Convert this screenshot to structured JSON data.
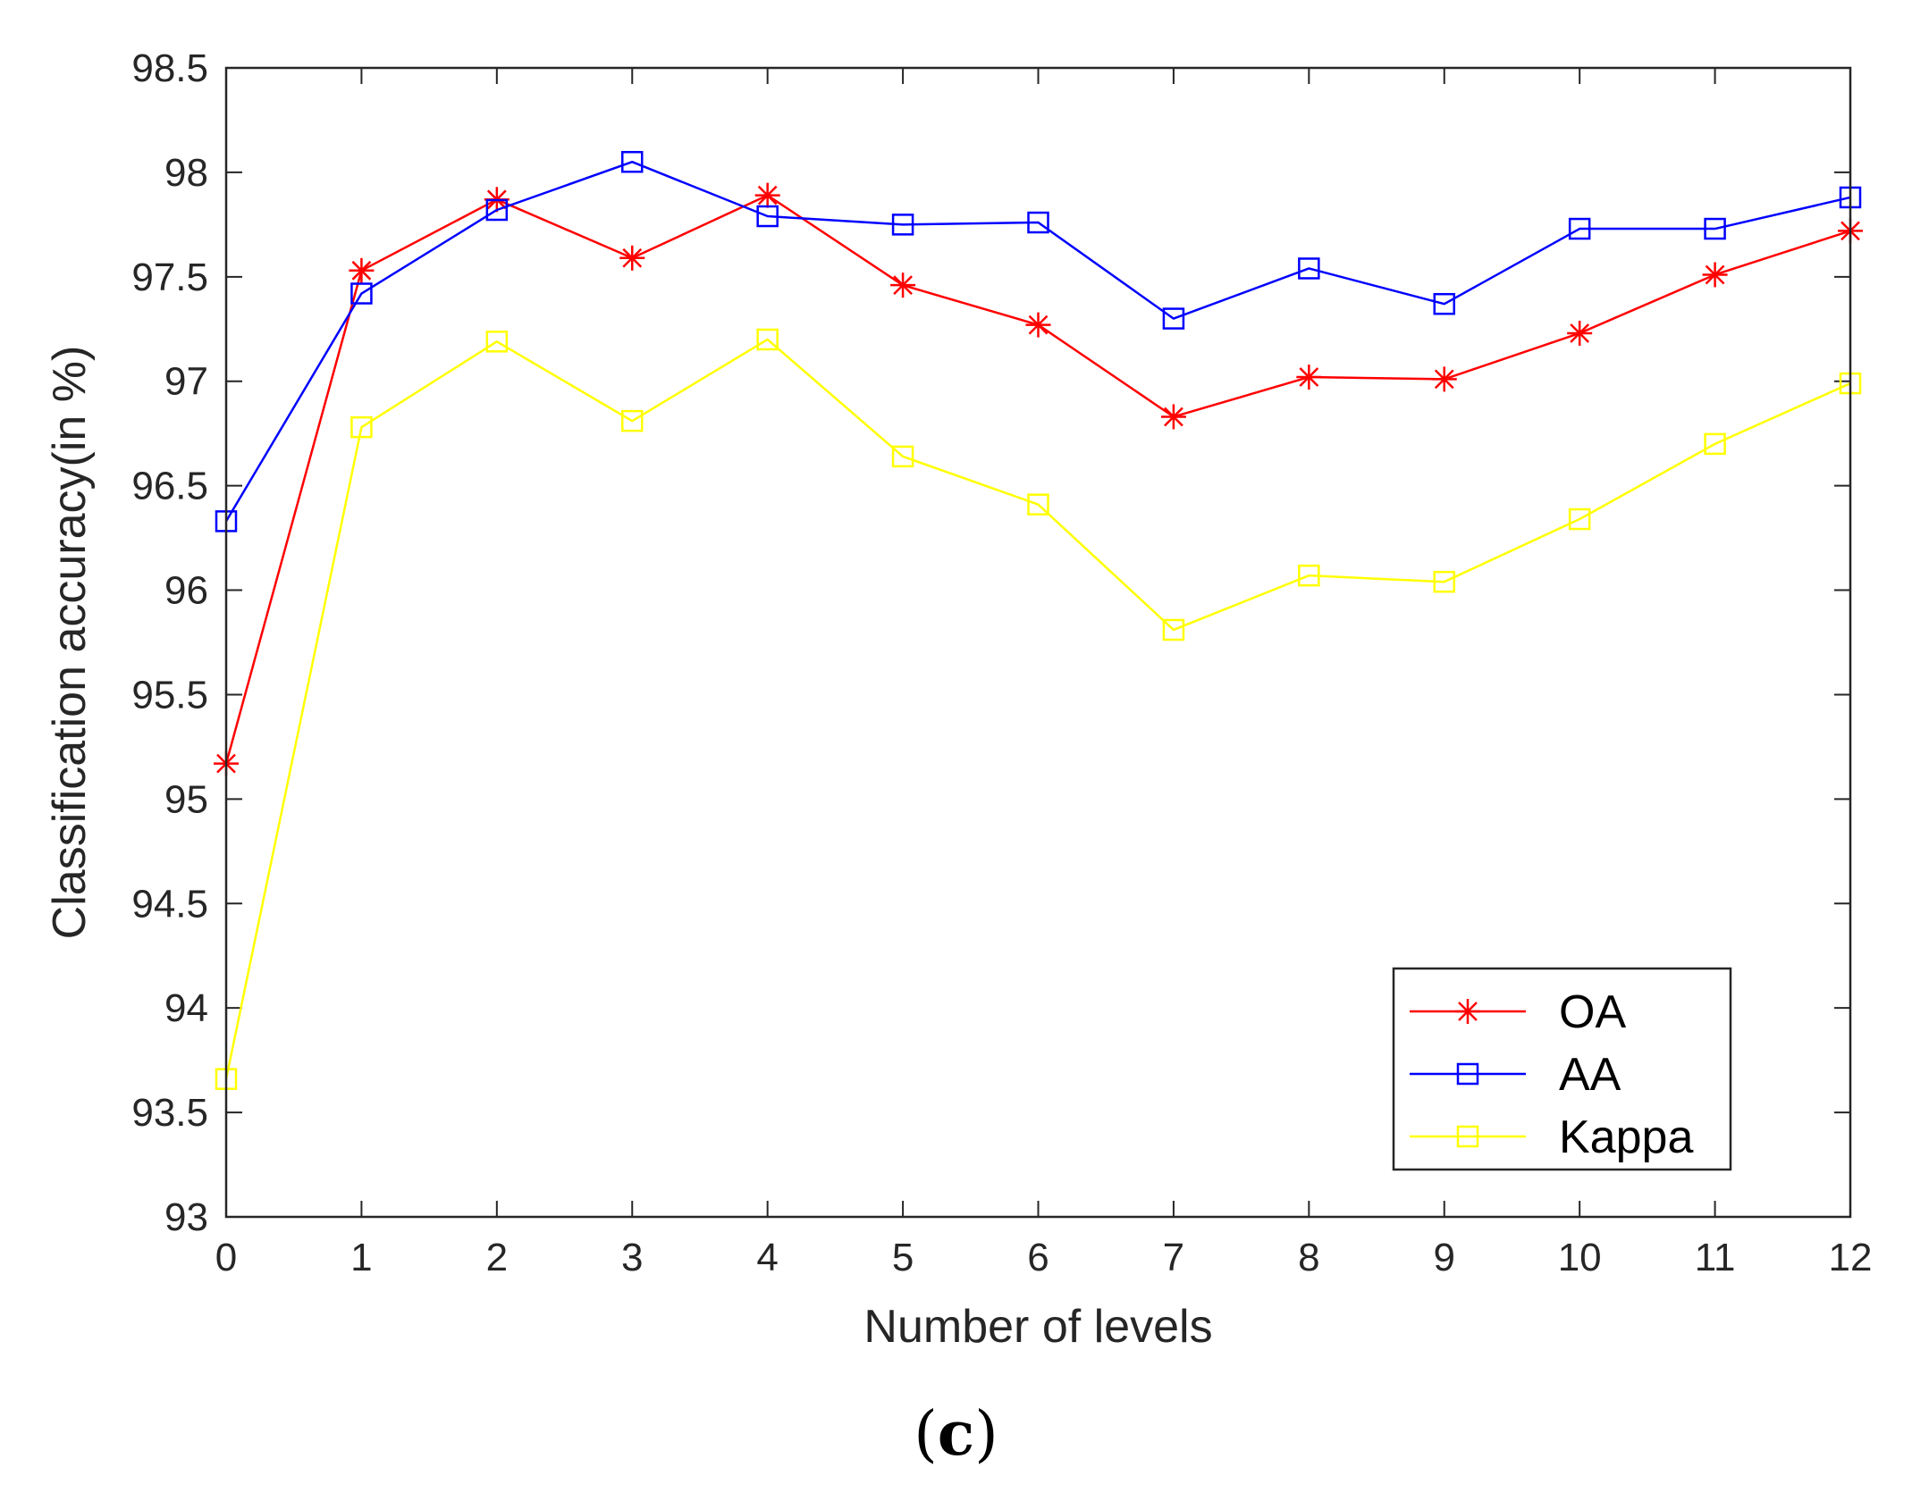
{
  "chart_data": {
    "type": "line",
    "title": "",
    "xlabel": "Number of levels",
    "ylabel": "Classification accuracy(in %)",
    "xlim": [
      0,
      12
    ],
    "ylim": [
      93,
      98.5
    ],
    "x": [
      0,
      1,
      2,
      3,
      4,
      5,
      6,
      7,
      8,
      9,
      10,
      11,
      12
    ],
    "xticks": [
      0,
      1,
      2,
      3,
      4,
      5,
      6,
      7,
      8,
      9,
      10,
      11,
      12
    ],
    "yticks": [
      93,
      93.5,
      94,
      94.5,
      95,
      95.5,
      96,
      96.5,
      97,
      97.5,
      98,
      98.5
    ],
    "ytick_labels": [
      "93",
      "93.5",
      "94",
      "94.5",
      "95",
      "95.5",
      "96",
      "96.5",
      "97",
      "97.5",
      "98",
      "98.5"
    ],
    "grid": false,
    "legend_position": "bottom-right",
    "series": [
      {
        "name": "OA",
        "color": "#ff0000",
        "marker": "asterisk",
        "values": [
          95.17,
          97.53,
          97.87,
          97.59,
          97.89,
          97.46,
          97.27,
          96.83,
          97.02,
          97.01,
          97.23,
          97.51,
          97.72
        ]
      },
      {
        "name": "AA",
        "color": "#0000ff",
        "marker": "square",
        "values": [
          96.33,
          97.42,
          97.82,
          98.05,
          97.79,
          97.75,
          97.76,
          97.3,
          97.54,
          97.37,
          97.73,
          97.73,
          97.88
        ]
      },
      {
        "name": "Kappa",
        "color": "#ffff00",
        "marker": "square",
        "values": [
          93.66,
          96.78,
          97.19,
          96.81,
          97.2,
          96.64,
          96.41,
          95.81,
          96.07,
          96.04,
          96.34,
          96.7,
          96.99
        ]
      }
    ]
  },
  "caption": {
    "open": "(",
    "letter": "c",
    "close": ")"
  }
}
